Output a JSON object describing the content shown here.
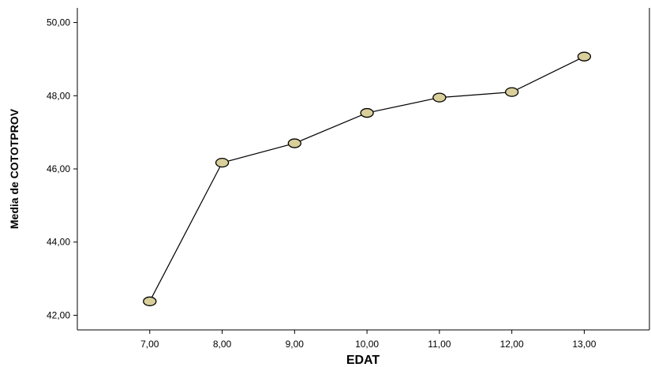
{
  "chart_data": {
    "type": "line",
    "xlabel": "EDAT",
    "ylabel": "Media de COTOTPROV",
    "x_ticks": [
      "7,00",
      "8,00",
      "9,00",
      "10,00",
      "11,00",
      "12,00",
      "13,00"
    ],
    "y_ticks": [
      "42,00",
      "44,00",
      "46,00",
      "48,00",
      "50,00"
    ],
    "xlim": [
      6.0,
      13.9
    ],
    "ylim": [
      41.6,
      50.4
    ],
    "grid": false,
    "series": [
      {
        "x": [
          7,
          8,
          9,
          10,
          11,
          12,
          13
        ],
        "values": [
          42.38,
          46.17,
          46.7,
          47.53,
          47.95,
          48.1,
          49.07
        ]
      }
    ],
    "marker_color": "#d8cf9a",
    "line_color": "#000000"
  }
}
